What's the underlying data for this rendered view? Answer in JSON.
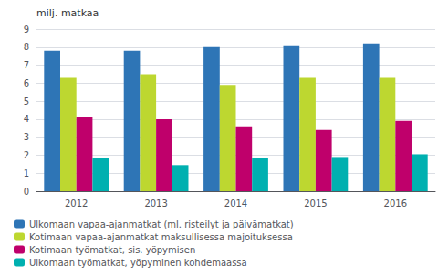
{
  "chart_data": {
    "type": "bar",
    "ylabel": "milj. matkaa",
    "categories": [
      "2012",
      "2013",
      "2014",
      "2015",
      "2016"
    ],
    "series": [
      {
        "name": "Ulkomaan vapaa-ajanmatkat (ml. risteilyt ja päivämatkat)",
        "color": "#2e75b6",
        "values": [
          7.8,
          7.8,
          8.0,
          8.1,
          8.2
        ]
      },
      {
        "name": "Kotimaan vapaa-ajanmatkat maksullisessa majoituksessa",
        "color": "#bdd730",
        "values": [
          6.3,
          6.5,
          5.9,
          6.3,
          6.3
        ]
      },
      {
        "name": "Kotimaan työmatkat, sis. yöpymisen",
        "color": "#bf006b",
        "values": [
          4.1,
          4.0,
          3.6,
          3.4,
          3.9
        ]
      },
      {
        "name": "Ulkomaan työmatkat, yöpyminen kohdemaassa",
        "color": "#00b0b0",
        "values": [
          1.85,
          1.45,
          1.85,
          1.9,
          2.05
        ]
      }
    ],
    "ylim": [
      0,
      9
    ],
    "yticks": [
      0,
      1,
      2,
      3,
      4,
      5,
      6,
      7,
      8,
      9
    ],
    "grid": true,
    "legend": "lower left"
  }
}
